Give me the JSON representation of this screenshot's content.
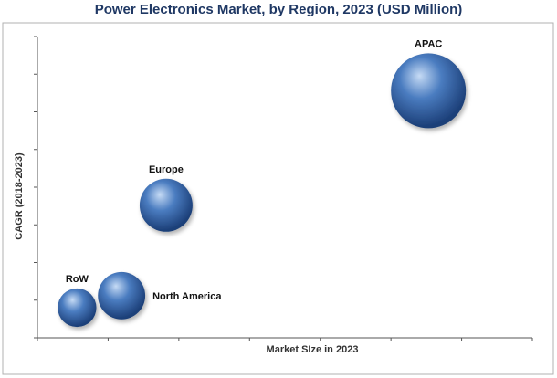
{
  "chart_data": {
    "type": "scatter",
    "subtype": "bubble",
    "title": "Power Electronics Market, by Region, 2023 (USD Million)",
    "xlabel": "Market SIze in 2023",
    "ylabel": "CAGR (2018-2023)",
    "xlim": [
      0,
      100
    ],
    "ylim": [
      0,
      100
    ],
    "tick_labels_visible": false,
    "grid": false,
    "legend": "none",
    "series": [
      {
        "name": "RoW",
        "x": 8,
        "y": 10,
        "size": 8,
        "label_position": "top"
      },
      {
        "name": "North America",
        "x": 17,
        "y": 14,
        "size": 12,
        "label_position": "right"
      },
      {
        "name": "Europe",
        "x": 26,
        "y": 44,
        "size": 15,
        "label_position": "top"
      },
      {
        "name": "APAC",
        "x": 79,
        "y": 82,
        "size": 30,
        "label_position": "top"
      }
    ],
    "colors": {
      "bubble_highlight": "#c6dbf5",
      "bubble_mid": "#4a7cc0",
      "bubble_dark": "#1c3f78",
      "title": "#1f3864",
      "axis": "#555555",
      "border": "#b0b0b0"
    }
  }
}
